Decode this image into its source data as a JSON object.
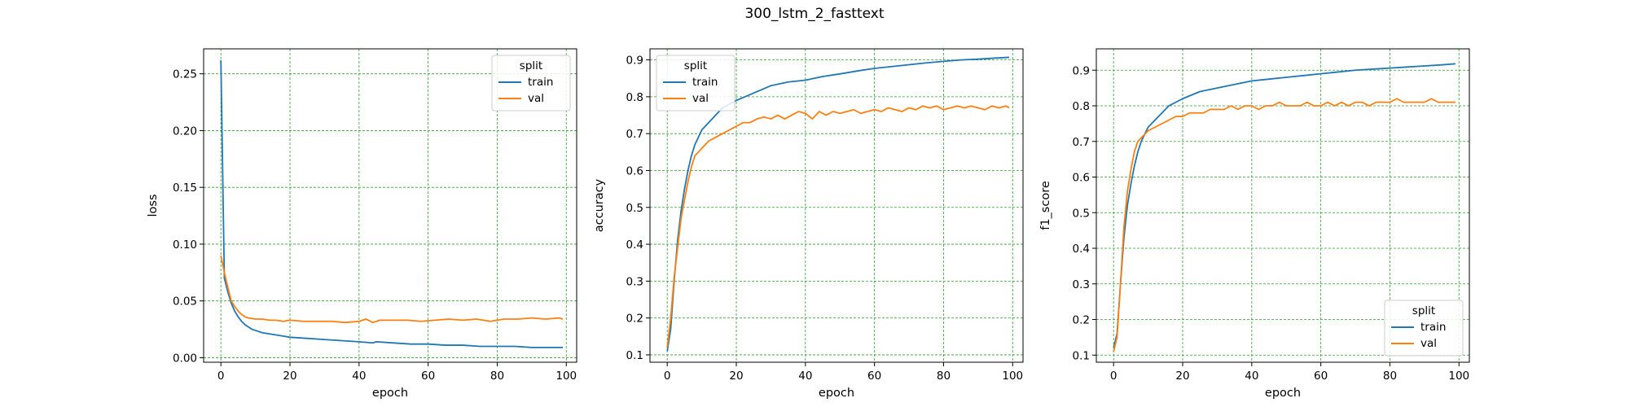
{
  "suptitle": "300_lstm_2_fasttext",
  "colors": {
    "train": "#1f77b4",
    "val": "#ff7f0e",
    "grid": "#2ca02c"
  },
  "chart_data": [
    {
      "type": "line",
      "xlabel": "epoch",
      "ylabel": "loss",
      "xlim": [
        -5,
        103
      ],
      "ylim": [
        -0.004,
        0.272
      ],
      "xticks": [
        "0",
        "20",
        "40",
        "60",
        "80",
        "100"
      ],
      "yticks": [
        "0.00",
        "0.05",
        "0.10",
        "0.15",
        "0.20",
        "0.25"
      ],
      "grid": true,
      "legend": {
        "title": "split",
        "location": "upper-right"
      },
      "series": [
        {
          "name": "train",
          "x": [
            0,
            1,
            2,
            3,
            4,
            5,
            6,
            7,
            8,
            9,
            10,
            12,
            14,
            16,
            18,
            20,
            25,
            30,
            35,
            40,
            44,
            45,
            50,
            55,
            60,
            65,
            70,
            75,
            80,
            85,
            90,
            95,
            99
          ],
          "y": [
            0.262,
            0.07,
            0.058,
            0.048,
            0.041,
            0.036,
            0.032,
            0.029,
            0.027,
            0.025,
            0.024,
            0.022,
            0.021,
            0.02,
            0.019,
            0.018,
            0.017,
            0.016,
            0.015,
            0.014,
            0.013,
            0.014,
            0.013,
            0.012,
            0.012,
            0.011,
            0.011,
            0.01,
            0.01,
            0.01,
            0.009,
            0.009,
            0.009
          ]
        },
        {
          "name": "val",
          "x": [
            0,
            1,
            2,
            3,
            4,
            5,
            6,
            7,
            8,
            10,
            12,
            14,
            16,
            18,
            20,
            24,
            28,
            32,
            36,
            40,
            42,
            44,
            46,
            50,
            54,
            58,
            62,
            66,
            70,
            74,
            78,
            82,
            86,
            90,
            94,
            98,
            99
          ],
          "y": [
            0.09,
            0.075,
            0.062,
            0.05,
            0.045,
            0.041,
            0.038,
            0.036,
            0.035,
            0.034,
            0.034,
            0.033,
            0.033,
            0.032,
            0.033,
            0.032,
            0.032,
            0.032,
            0.031,
            0.032,
            0.034,
            0.031,
            0.033,
            0.033,
            0.033,
            0.032,
            0.033,
            0.034,
            0.033,
            0.034,
            0.032,
            0.034,
            0.034,
            0.035,
            0.034,
            0.035,
            0.034
          ]
        }
      ]
    },
    {
      "type": "line",
      "xlabel": "epoch",
      "ylabel": "accuracy",
      "xlim": [
        -5,
        103
      ],
      "ylim": [
        0.08,
        0.93
      ],
      "xticks": [
        "0",
        "20",
        "40",
        "60",
        "80",
        "100"
      ],
      "yticks": [
        "0.1",
        "0.2",
        "0.3",
        "0.4",
        "0.5",
        "0.6",
        "0.7",
        "0.8",
        "0.9"
      ],
      "grid": true,
      "legend": {
        "title": "split",
        "location": "upper-left"
      },
      "series": [
        {
          "name": "train",
          "x": [
            0,
            1,
            2,
            3,
            4,
            5,
            6,
            7,
            8,
            9,
            10,
            12,
            14,
            16,
            18,
            20,
            25,
            30,
            35,
            40,
            45,
            50,
            55,
            60,
            65,
            70,
            75,
            80,
            85,
            90,
            95,
            99
          ],
          "y": [
            0.11,
            0.17,
            0.3,
            0.41,
            0.49,
            0.55,
            0.6,
            0.64,
            0.67,
            0.69,
            0.71,
            0.73,
            0.75,
            0.77,
            0.78,
            0.79,
            0.81,
            0.83,
            0.84,
            0.845,
            0.855,
            0.862,
            0.87,
            0.877,
            0.882,
            0.887,
            0.892,
            0.896,
            0.9,
            0.902,
            0.905,
            0.907
          ]
        },
        {
          "name": "val",
          "x": [
            0,
            1,
            2,
            3,
            4,
            5,
            6,
            7,
            8,
            9,
            10,
            12,
            14,
            16,
            18,
            20,
            22,
            24,
            26,
            28,
            30,
            32,
            34,
            36,
            38,
            40,
            42,
            44,
            46,
            48,
            50,
            52,
            54,
            56,
            58,
            60,
            62,
            64,
            66,
            68,
            70,
            72,
            74,
            76,
            78,
            80,
            82,
            84,
            86,
            88,
            90,
            92,
            94,
            96,
            98,
            99
          ],
          "y": [
            0.12,
            0.2,
            0.31,
            0.39,
            0.47,
            0.52,
            0.57,
            0.61,
            0.64,
            0.65,
            0.66,
            0.68,
            0.69,
            0.7,
            0.71,
            0.72,
            0.73,
            0.73,
            0.74,
            0.745,
            0.74,
            0.75,
            0.74,
            0.75,
            0.76,
            0.755,
            0.74,
            0.76,
            0.75,
            0.76,
            0.755,
            0.76,
            0.765,
            0.755,
            0.76,
            0.765,
            0.76,
            0.77,
            0.765,
            0.76,
            0.77,
            0.765,
            0.775,
            0.77,
            0.775,
            0.765,
            0.77,
            0.775,
            0.77,
            0.775,
            0.77,
            0.765,
            0.775,
            0.77,
            0.775,
            0.77
          ]
        }
      ]
    },
    {
      "type": "line",
      "xlabel": "epoch",
      "ylabel": "f1_score",
      "xlim": [
        -5,
        103
      ],
      "ylim": [
        0.08,
        0.96
      ],
      "xticks": [
        "0",
        "20",
        "40",
        "60",
        "80",
        "100"
      ],
      "yticks": [
        "0.1",
        "0.2",
        "0.3",
        "0.4",
        "0.5",
        "0.6",
        "0.7",
        "0.8",
        "0.9"
      ],
      "grid": true,
      "legend": {
        "title": "split",
        "location": "lower-right"
      },
      "series": [
        {
          "name": "train",
          "x": [
            0,
            1,
            2,
            3,
            4,
            5,
            6,
            7,
            8,
            9,
            10,
            12,
            14,
            16,
            18,
            20,
            25,
            30,
            35,
            40,
            45,
            50,
            55,
            60,
            65,
            70,
            75,
            80,
            85,
            90,
            95,
            99
          ],
          "y": [
            0.12,
            0.16,
            0.3,
            0.43,
            0.52,
            0.58,
            0.63,
            0.67,
            0.7,
            0.72,
            0.74,
            0.76,
            0.78,
            0.8,
            0.81,
            0.82,
            0.84,
            0.85,
            0.86,
            0.87,
            0.875,
            0.88,
            0.885,
            0.89,
            0.895,
            0.9,
            0.903,
            0.906,
            0.909,
            0.912,
            0.915,
            0.918
          ]
        },
        {
          "name": "val",
          "x": [
            0,
            1,
            2,
            3,
            4,
            5,
            6,
            7,
            8,
            9,
            10,
            12,
            14,
            16,
            18,
            20,
            22,
            24,
            26,
            28,
            30,
            32,
            34,
            36,
            38,
            40,
            42,
            44,
            46,
            48,
            50,
            52,
            54,
            56,
            58,
            60,
            62,
            64,
            66,
            68,
            70,
            72,
            74,
            76,
            78,
            80,
            82,
            84,
            86,
            88,
            90,
            92,
            94,
            96,
            98,
            99
          ],
          "y": [
            0.11,
            0.15,
            0.3,
            0.46,
            0.56,
            0.62,
            0.67,
            0.7,
            0.71,
            0.72,
            0.73,
            0.74,
            0.75,
            0.76,
            0.77,
            0.77,
            0.78,
            0.78,
            0.78,
            0.79,
            0.79,
            0.79,
            0.8,
            0.79,
            0.8,
            0.8,
            0.79,
            0.8,
            0.8,
            0.81,
            0.8,
            0.8,
            0.8,
            0.81,
            0.8,
            0.8,
            0.81,
            0.8,
            0.81,
            0.8,
            0.81,
            0.81,
            0.8,
            0.81,
            0.81,
            0.81,
            0.82,
            0.81,
            0.81,
            0.81,
            0.81,
            0.82,
            0.81,
            0.81,
            0.81,
            0.81
          ]
        }
      ]
    }
  ]
}
